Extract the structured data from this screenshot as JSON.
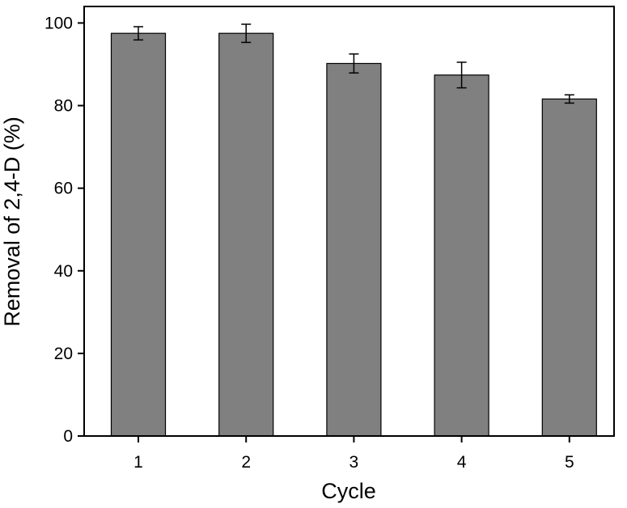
{
  "chart_data": {
    "type": "bar",
    "categories": [
      "1",
      "2",
      "3",
      "4",
      "5"
    ],
    "values": [
      97.5,
      97.5,
      90.2,
      87.4,
      81.6
    ],
    "errors": [
      1.6,
      2.2,
      2.3,
      3.1,
      1.0
    ],
    "xlabel": "Cycle",
    "ylabel": "Removal of 2,4-D (%)",
    "ylim": [
      0,
      104
    ],
    "yticks": [
      "0",
      "20",
      "40",
      "60",
      "80",
      "100"
    ],
    "bar_color": "#808080",
    "grid": false,
    "legend": "none"
  }
}
